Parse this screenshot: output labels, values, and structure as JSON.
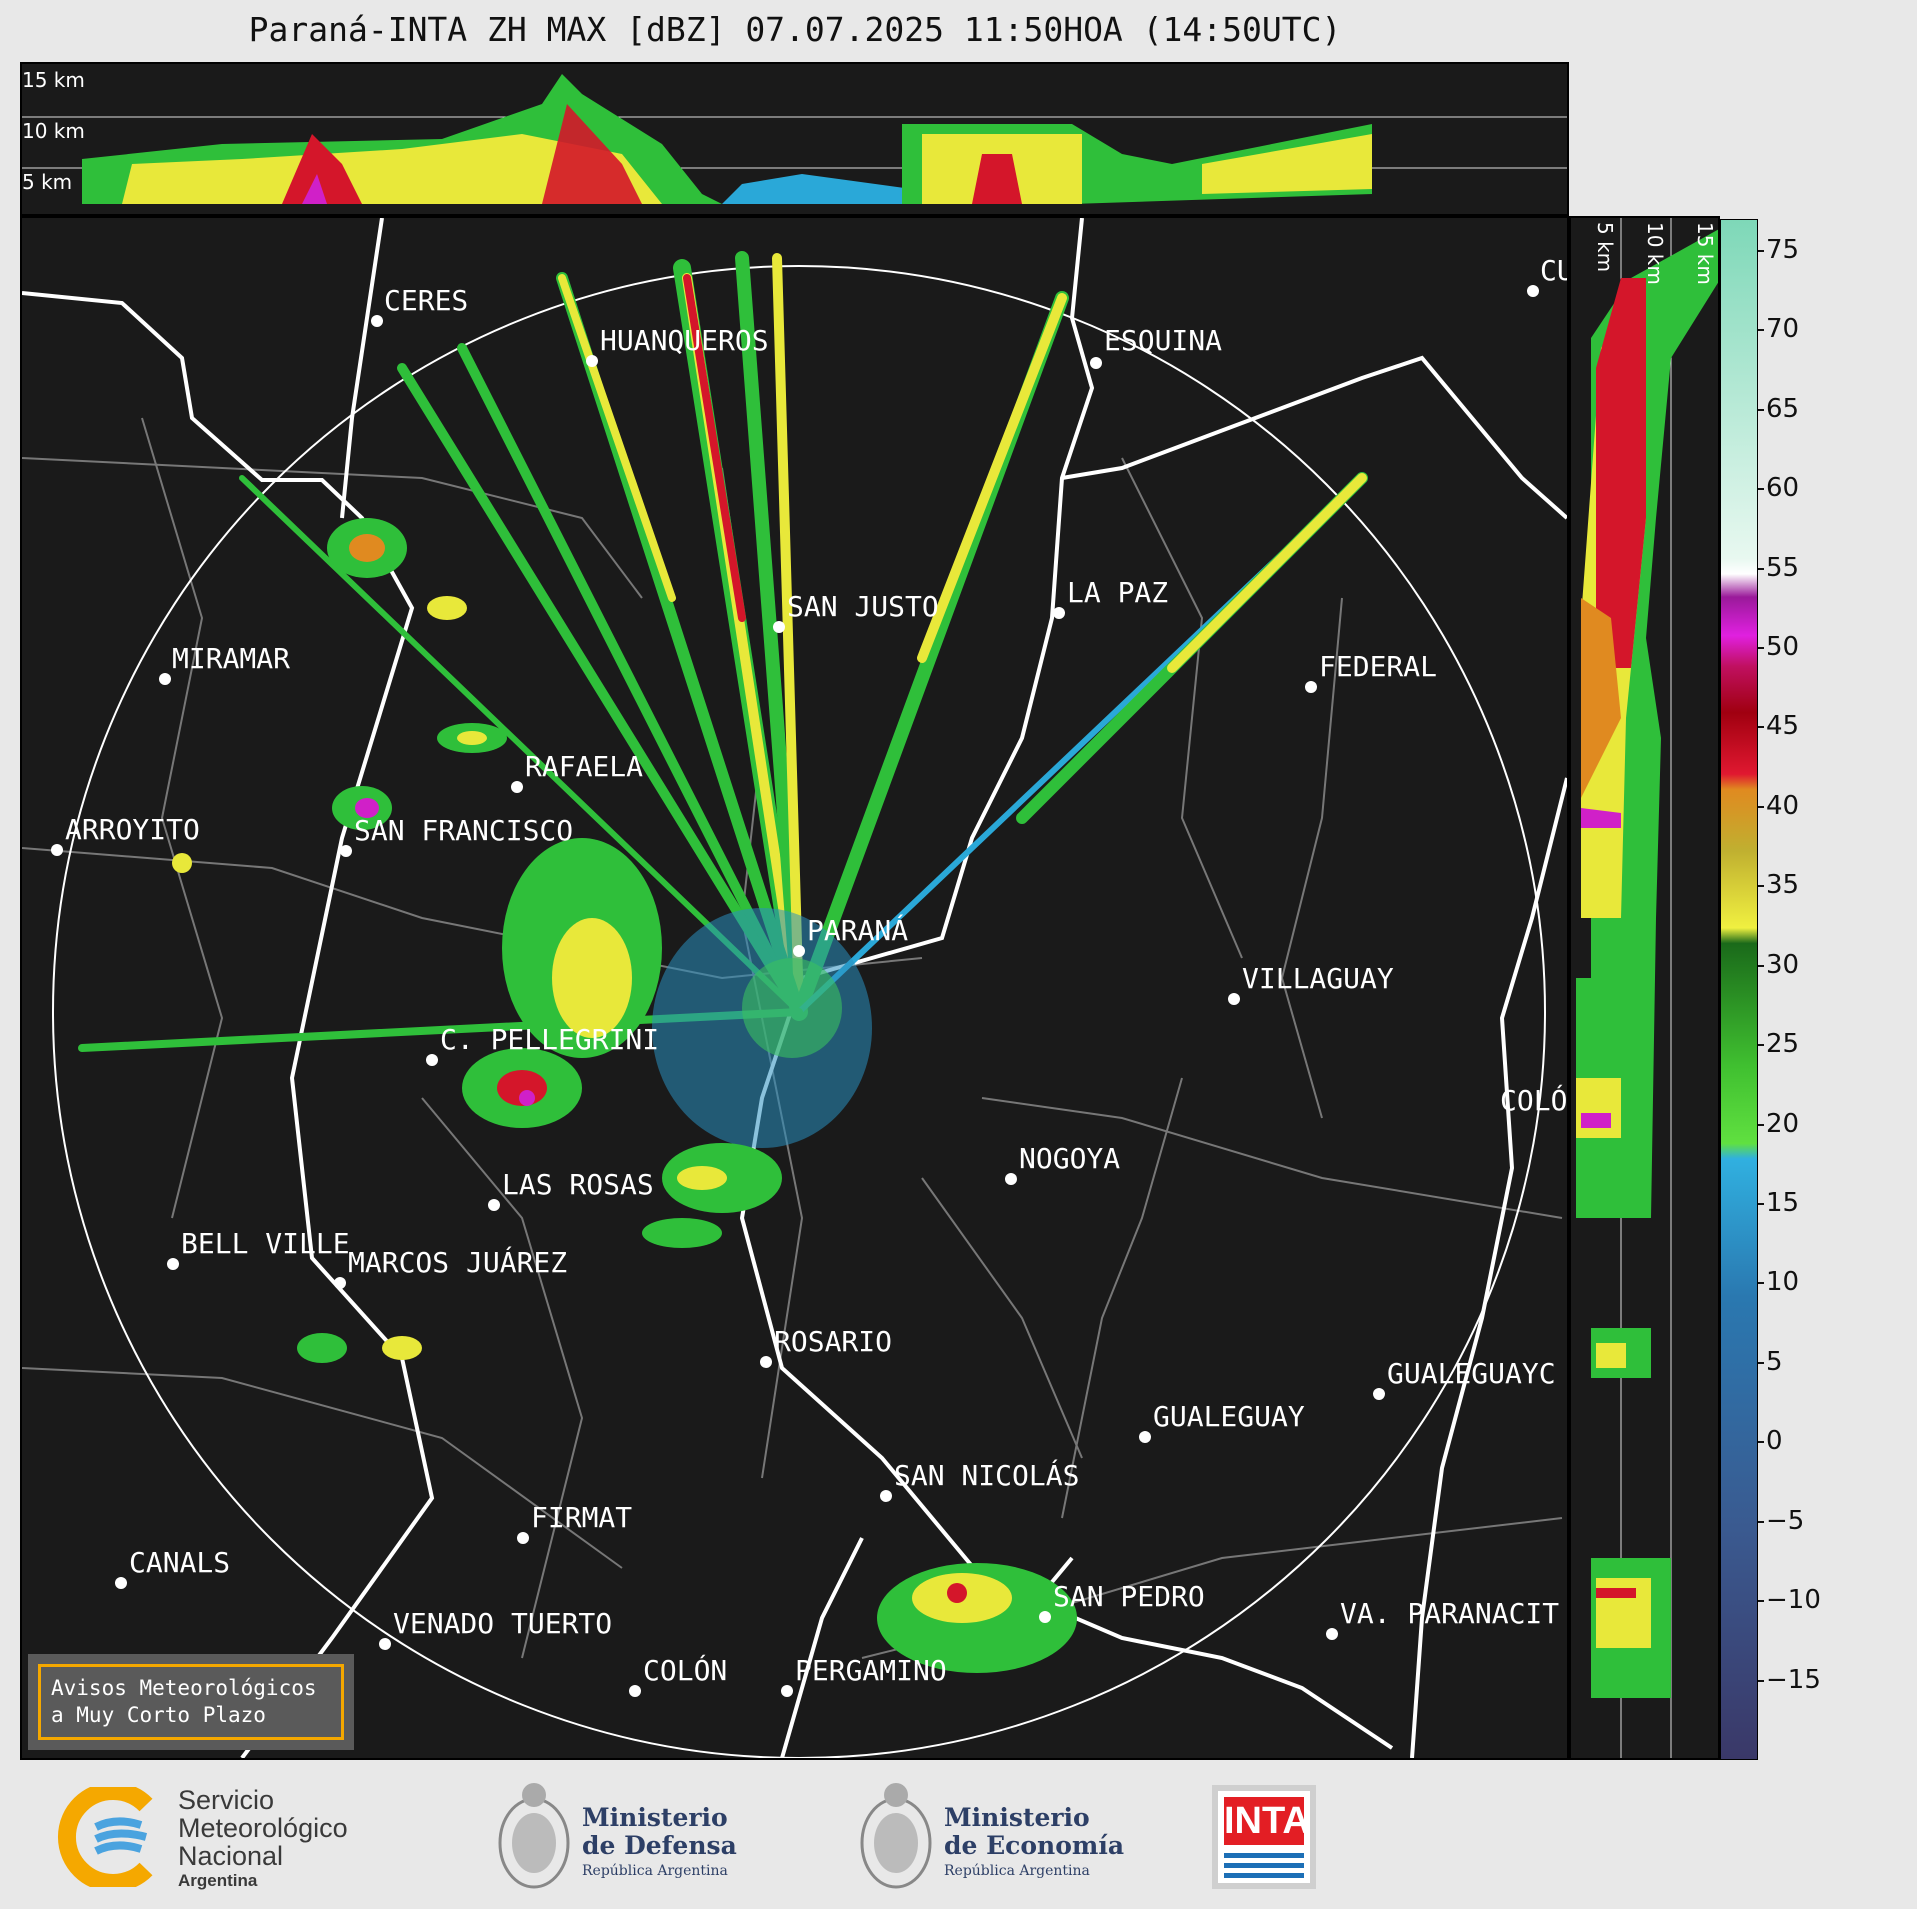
{
  "title": "Paraná-INTA ZH MAX [dBZ] 07.07.2025 11:50HOA (14:50UTC)",
  "top_panel": {
    "altitude_labels": [
      "15 km",
      "10 km",
      "5 km"
    ]
  },
  "side_panel": {
    "altitude_labels": [
      "5 km",
      "10 km",
      "15 km"
    ]
  },
  "colorbar": {
    "unit": "dBZ",
    "ticks": [
      "75",
      "70",
      "65",
      "60",
      "55",
      "50",
      "45",
      "40",
      "35",
      "30",
      "25",
      "20",
      "15",
      "10",
      "5",
      "0",
      "−5",
      "−10",
      "−15"
    ],
    "tick_values": [
      75,
      70,
      65,
      60,
      55,
      50,
      45,
      40,
      35,
      30,
      25,
      20,
      15,
      10,
      5,
      0,
      -5,
      -10,
      -15
    ],
    "range": [
      -20,
      77
    ],
    "colors": {
      "very_low": "#3b3f6e",
      "low": "#3a6fa3",
      "mid_low": "#2aa8d8",
      "green": "#2fbf3a",
      "yellow": "#e8e83a",
      "orange": "#e08a20",
      "red": "#d4162a",
      "magenta": "#d020c8",
      "white": "#ffffff",
      "pale_green": "#8fe0c0"
    }
  },
  "cities": [
    {
      "name": "CERES"
    },
    {
      "name": "HUANQUEROS"
    },
    {
      "name": "ESQUINA"
    },
    {
      "name": "CU"
    },
    {
      "name": "SAN JUSTO"
    },
    {
      "name": "LA PAZ"
    },
    {
      "name": "MIRAMAR"
    },
    {
      "name": "FEDERAL"
    },
    {
      "name": "RAFAELA"
    },
    {
      "name": "ARROYITO"
    },
    {
      "name": "SAN FRANCISCO"
    },
    {
      "name": "PARANÁ"
    },
    {
      "name": "VILLAGUAY"
    },
    {
      "name": "C. PELLEGRINI"
    },
    {
      "name": "COLÓ"
    },
    {
      "name": "NOGOYA"
    },
    {
      "name": "LAS ROSAS"
    },
    {
      "name": "BELL VILLE"
    },
    {
      "name": "MARCOS JUÁREZ"
    },
    {
      "name": "ROSARIO"
    },
    {
      "name": "GUALEGUAYC"
    },
    {
      "name": "GUALEGUAY"
    },
    {
      "name": "SAN NICOLÁS"
    },
    {
      "name": "FIRMAT"
    },
    {
      "name": "CANALS"
    },
    {
      "name": "SAN PEDRO"
    },
    {
      "name": "VENADO TUERTO"
    },
    {
      "name": "VA. PARANACIT"
    },
    {
      "name": "COLÓN"
    },
    {
      "name": "PERGAMINO"
    }
  ],
  "notice": {
    "line1": "Avisos Meteorológicos",
    "line2": "a Muy Corto Plazo"
  },
  "footer": {
    "smn": {
      "line1": "Servicio",
      "line2": "Meteorológico",
      "line3": "Nacional",
      "line4": "Argentina"
    },
    "defensa": {
      "line1": "Ministerio",
      "line2": "de Defensa",
      "line3": "República Argentina"
    },
    "economia": {
      "line1": "Ministerio",
      "line2": "de Economía",
      "line3": "República Argentina"
    },
    "inta": {
      "label": "INTA"
    }
  }
}
